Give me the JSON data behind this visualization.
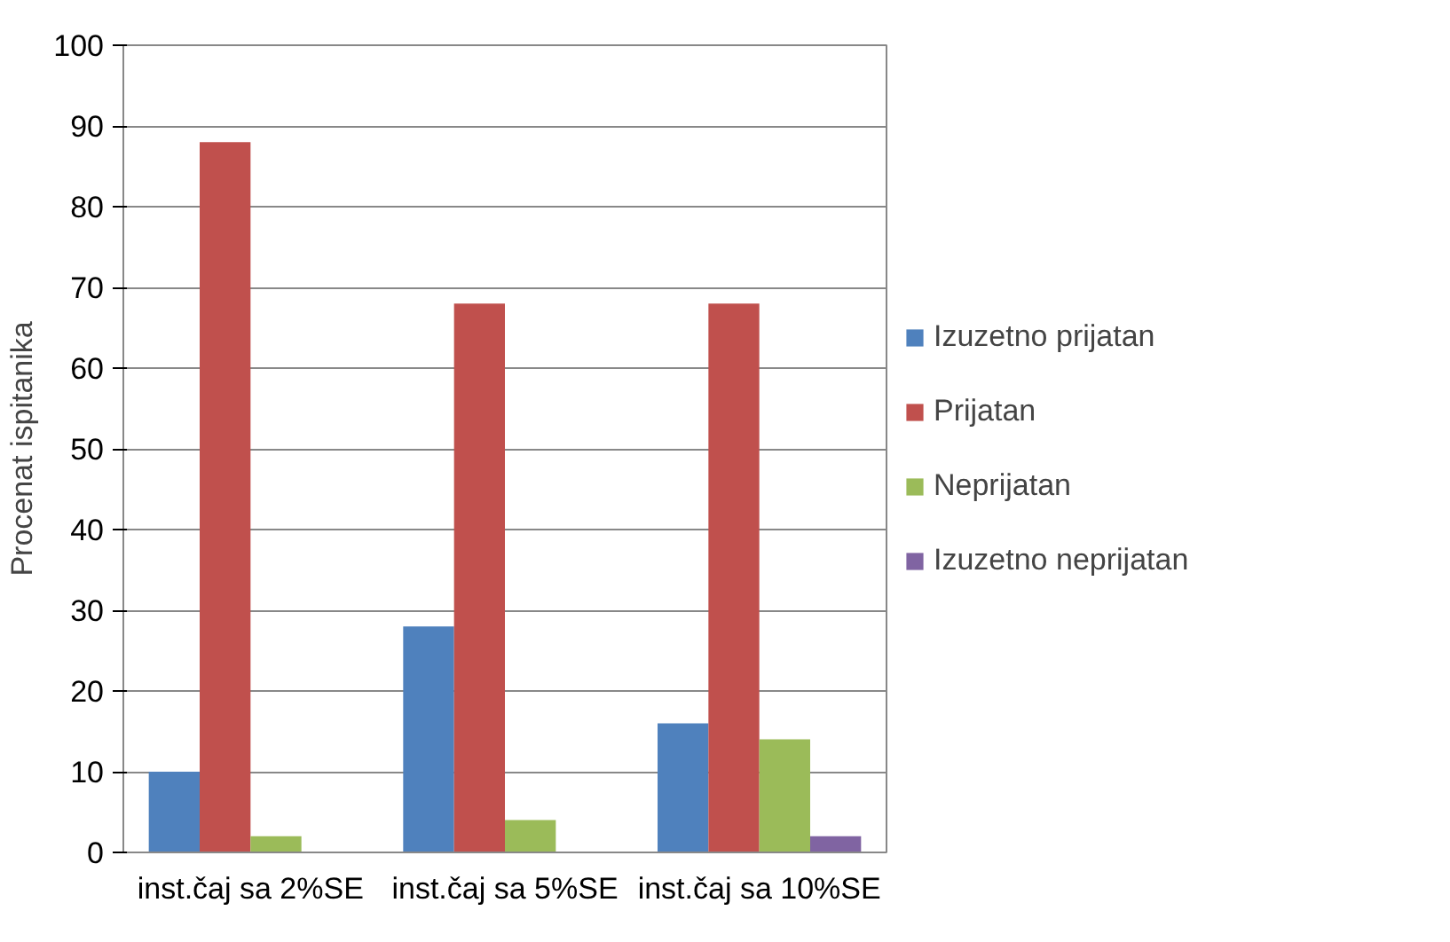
{
  "chart_data": {
    "type": "bar",
    "ylabel": "Procenat ispitanika",
    "categories": [
      "inst.čaj sa 2%SE",
      "inst.čaj sa 5%SE",
      "inst.čaj sa 10%SE"
    ],
    "series": [
      {
        "name": "Izuzetno prijatan",
        "color": "#4f81bd",
        "values": [
          10,
          28,
          16
        ]
      },
      {
        "name": "Prijatan",
        "color": "#c0504d",
        "values": [
          88,
          68,
          68
        ]
      },
      {
        "name": "Neprijatan",
        "color": "#9bbb59",
        "values": [
          2,
          4,
          14
        ]
      },
      {
        "name": "Izuzetno neprijatan",
        "color": "#8064a2",
        "values": [
          0,
          0,
          2
        ]
      }
    ],
    "ylim": [
      0,
      100
    ],
    "yticks": [
      0,
      10,
      20,
      30,
      40,
      50,
      60,
      70,
      80,
      90,
      100
    ],
    "grid": "y",
    "legend": "right"
  }
}
